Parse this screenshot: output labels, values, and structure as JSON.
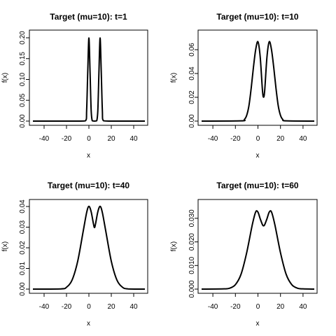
{
  "chart_data": [
    {
      "type": "line",
      "title": "Target (mu=10): t=1",
      "xlabel": "x",
      "ylabel": "f(x)",
      "xlim": [
        -50,
        50
      ],
      "ylim": [
        0,
        0.2
      ],
      "xticks": [
        "-40",
        "-20",
        "0",
        "20",
        "40"
      ],
      "yticks": [
        "0.00",
        "0.05",
        "0.10",
        "0.15",
        "0.20"
      ],
      "series": [
        {
          "x": [
            -50,
            -10,
            -3,
            -2,
            -1,
            0,
            1,
            2,
            3,
            5,
            7,
            8,
            9,
            10,
            11,
            12,
            13,
            20,
            50
          ],
          "values": [
            0,
            0,
            0.0009,
            0.027,
            0.121,
            0.1995,
            0.121,
            0.027,
            0.0009,
            0,
            0.0009,
            0.027,
            0.121,
            0.1995,
            0.121,
            0.027,
            0.0009,
            0,
            0
          ]
        }
      ]
    },
    {
      "type": "line",
      "title": "Target (mu=10): t=10",
      "xlabel": "x",
      "ylabel": "f(x)",
      "xlim": [
        -50,
        50
      ],
      "ylim": [
        0,
        0.07
      ],
      "xticks": [
        "-40",
        "-20",
        "0",
        "20",
        "40"
      ],
      "yticks": [
        "0.00",
        "0.02",
        "0.04",
        "0.06"
      ],
      "series": [
        {
          "x": [
            -50,
            -15,
            -12,
            -10,
            -8,
            -6,
            -4,
            -2,
            0,
            2,
            4,
            5,
            6,
            8,
            10,
            12,
            14,
            16,
            18,
            20,
            22,
            25,
            50
          ],
          "values": [
            0,
            0.0002,
            0.0014,
            0.0048,
            0.0129,
            0.0276,
            0.0452,
            0.0601,
            0.0667,
            0.0539,
            0.0259,
            0.0201,
            0.0259,
            0.0539,
            0.0667,
            0.0601,
            0.0452,
            0.0276,
            0.0129,
            0.0048,
            0.0014,
            0.0002,
            0
          ]
        }
      ]
    },
    {
      "type": "line",
      "title": "Target (mu=10): t=40",
      "xlabel": "x",
      "ylabel": "f(x)",
      "xlim": [
        -50,
        50
      ],
      "ylim": [
        0,
        0.04
      ],
      "xticks": [
        "-40",
        "-20",
        "0",
        "20",
        "40"
      ],
      "yticks": [
        "0.00",
        "0.01",
        "0.02",
        "0.03",
        "0.04"
      ],
      "series": [
        {
          "x": [
            -50,
            -25,
            -20,
            -15,
            -10,
            -5,
            -2,
            0,
            2,
            4,
            5,
            6,
            8,
            10,
            12,
            15,
            20,
            25,
            30,
            35,
            50
          ],
          "values": [
            0,
            0.0001,
            0.0009,
            0.0044,
            0.0135,
            0.0283,
            0.0371,
            0.0401,
            0.0375,
            0.0318,
            0.0298,
            0.0318,
            0.0375,
            0.0401,
            0.0371,
            0.0283,
            0.0135,
            0.0044,
            0.0009,
            0.0001,
            0
          ]
        }
      ]
    },
    {
      "type": "line",
      "title": "Target (mu=10): t=60",
      "xlabel": "x",
      "ylabel": "f(x)",
      "xlim": [
        -50,
        50
      ],
      "ylim": [
        0,
        0.035
      ],
      "xticks": [
        "-40",
        "-20",
        "0",
        "20",
        "40"
      ],
      "yticks": [
        "0.000",
        "0.010",
        "0.020",
        "0.030"
      ],
      "series": [
        {
          "x": [
            -50,
            -30,
            -25,
            -20,
            -15,
            -10,
            -5,
            -2,
            0,
            2,
            4,
            5,
            6,
            8,
            10,
            12,
            15,
            20,
            25,
            30,
            35,
            40,
            50
          ],
          "values": [
            0,
            0.0001,
            0.0004,
            0.0019,
            0.0063,
            0.0154,
            0.0273,
            0.0327,
            0.0326,
            0.0298,
            0.0273,
            0.0268,
            0.0273,
            0.0298,
            0.0326,
            0.0327,
            0.0273,
            0.0154,
            0.0063,
            0.0019,
            0.0004,
            0.0001,
            0
          ]
        }
      ]
    }
  ]
}
